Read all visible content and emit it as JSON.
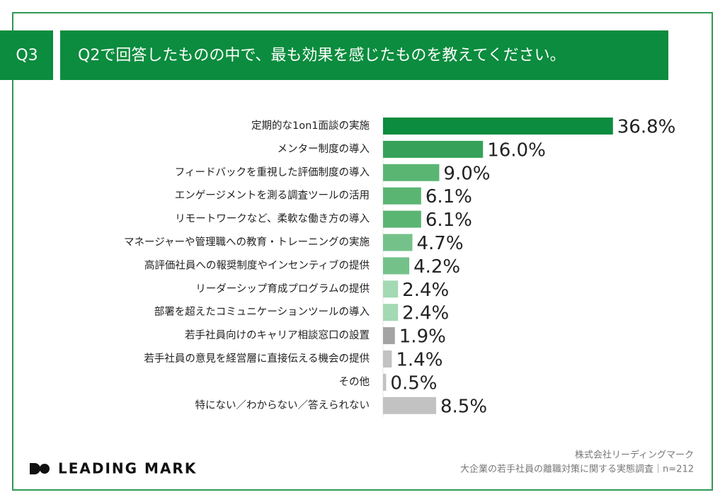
{
  "header": {
    "label": "Q3",
    "title": "Q2で回答したものの中で、最も効果を感じたものを教えてください。"
  },
  "chart_data": {
    "type": "bar",
    "orientation": "horizontal",
    "categories": [
      "定期的な1on1面談の実施",
      "メンター制度の導入",
      "フィードバックを重視した評価制度の導入",
      "エンゲージメントを測る調査ツールの活用",
      "リモートワークなど、柔軟な働き方の導入",
      "マネージャーや管理職への教育・トレーニングの実施",
      "高評価社員への報奨制度やインセンティブの提供",
      "リーダーシップ育成プログラムの提供",
      "部署を超えたコミュニケーションツールの導入",
      "若手社員向けのキャリア相談窓口の設置",
      "若手社員の意見を経営層に直接伝える機会の提供",
      "その他",
      "特にない／わからない／答えられない"
    ],
    "values": [
      36.8,
      16.0,
      9.0,
      6.1,
      6.1,
      4.7,
      4.2,
      2.4,
      2.4,
      1.9,
      1.4,
      0.5,
      8.5
    ],
    "value_labels": [
      "36.8%",
      "16.0%",
      "9.0%",
      "6.1%",
      "6.1%",
      "4.7%",
      "4.2%",
      "2.4%",
      "2.4%",
      "1.9%",
      "1.4%",
      "0.5%",
      "8.5%"
    ],
    "colors": [
      "#0b8c3e",
      "#36a259",
      "#5ab573",
      "#5ab573",
      "#5ab573",
      "#74c28a",
      "#74c28a",
      "#a3d9b3",
      "#a3d9b3",
      "#a3a3a3",
      "#c2c2c2",
      "#c2c2c2",
      "#c2c2c2"
    ],
    "xlim": [
      0,
      40
    ]
  },
  "footer": {
    "logo": "LEADING MARK",
    "company": "株式会社リーディングマーク",
    "source": "大企業の若手社員の離職対策に関する実態調査｜n=212"
  }
}
